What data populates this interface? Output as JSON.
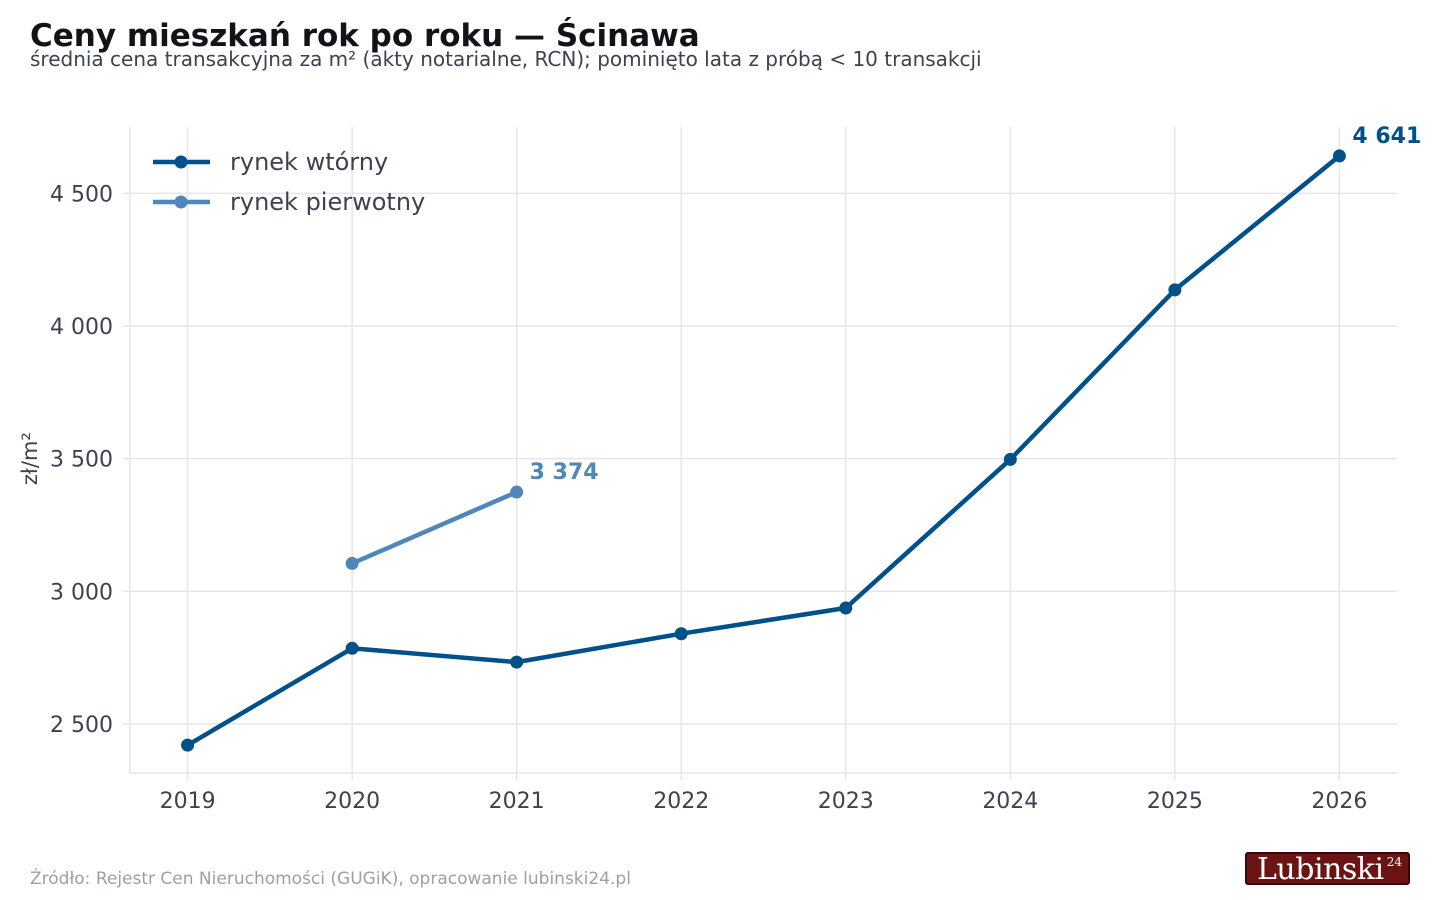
{
  "title": "Ceny mieszkań rok po roku — Ścinawa",
  "subtitle": "średnia cena transakcyjna za m² (akty notarialne, RCN); pominięto lata z próbą < 10 transakcji",
  "source": "Źródło: Rejestr Cen Nieruchomości (GUGiK), opracowanie lubinski24.pl",
  "logo": {
    "text": "Lubinski",
    "sup": "24"
  },
  "colors": {
    "secondary": "#00508a",
    "primary": "#4f87b8",
    "grid": "#e6e6e6",
    "axis_text": "#3b4250"
  },
  "chart_data": {
    "type": "line",
    "title": "Ceny mieszkań rok po roku — Ścinawa",
    "subtitle": "średnia cena transakcyjna za m² (akty notarialne, RCN); pominięto lata z próbą < 10 transakcji",
    "xlabel": "",
    "ylabel": "zł/m²",
    "x_ticks": [
      2019,
      2020,
      2021,
      2022,
      2023,
      2024,
      2025,
      2026
    ],
    "y_ticks": [
      2500,
      3000,
      3500,
      4000,
      4500
    ],
    "y_tick_labels": [
      "2 500",
      "3 000",
      "3 500",
      "4 000",
      "4 500"
    ],
    "xlim": [
      2018.65,
      2026.35
    ],
    "ylim": [
      2315,
      4750
    ],
    "grid": true,
    "legend": "top-left",
    "series": [
      {
        "name": "rynek wtórny",
        "color": "#00508a",
        "x": [
          2019,
          2020,
          2021,
          2022,
          2023,
          2024,
          2025,
          2026
        ],
        "y": [
          2420,
          2785,
          2733,
          2840,
          2937,
          3497,
          4136,
          4641
        ],
        "end_label": "4 641"
      },
      {
        "name": "rynek pierwotny",
        "color": "#4f87b8",
        "x": [
          2020,
          2021
        ],
        "y": [
          3105,
          3374
        ],
        "end_label": "3 374"
      }
    ]
  }
}
